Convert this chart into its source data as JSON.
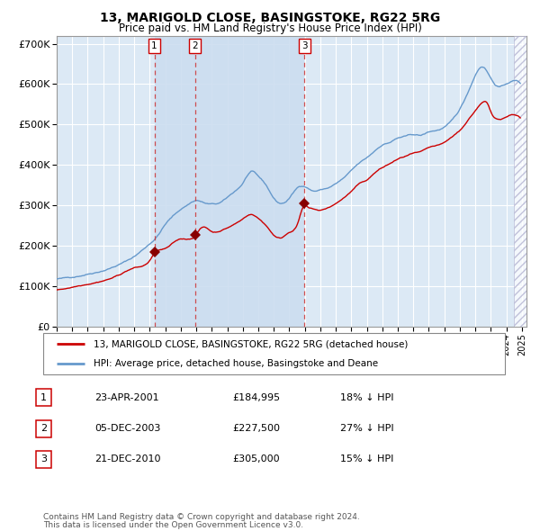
{
  "title": "13, MARIGOLD CLOSE, BASINGSTOKE, RG22 5RG",
  "subtitle": "Price paid vs. HM Land Registry's House Price Index (HPI)",
  "legend_label_red": "13, MARIGOLD CLOSE, BASINGSTOKE, RG22 5RG (detached house)",
  "legend_label_blue": "HPI: Average price, detached house, Basingstoke and Deane",
  "footer1": "Contains HM Land Registry data © Crown copyright and database right 2024.",
  "footer2": "This data is licensed under the Open Government Licence v3.0.",
  "transactions": [
    {
      "num": 1,
      "date": "23-APR-2001",
      "price": 184995,
      "price_str": "£184,995",
      "pct_str": "18% ↓ HPI",
      "x_year": 2001.3
    },
    {
      "num": 2,
      "date": "05-DEC-2003",
      "price": 227500,
      "price_str": "£227,500",
      "pct_str": "27% ↓ HPI",
      "x_year": 2003.92
    },
    {
      "num": 3,
      "date": "21-DEC-2010",
      "price": 305000,
      "price_str": "£305,000",
      "pct_str": "15% ↓ HPI",
      "x_year": 2010.97
    }
  ],
  "ylim": [
    0,
    720000
  ],
  "xlim_start": 1995.0,
  "xlim_end": 2025.3,
  "hatch_start": 2024.5,
  "plot_bg": "#dce9f5",
  "grid_color": "#ffffff",
  "red_line_color": "#cc0000",
  "blue_line_color": "#6699cc",
  "dashed_line_color": "#cc3333",
  "marker_color": "#880000",
  "band_color": "#ccddf0"
}
